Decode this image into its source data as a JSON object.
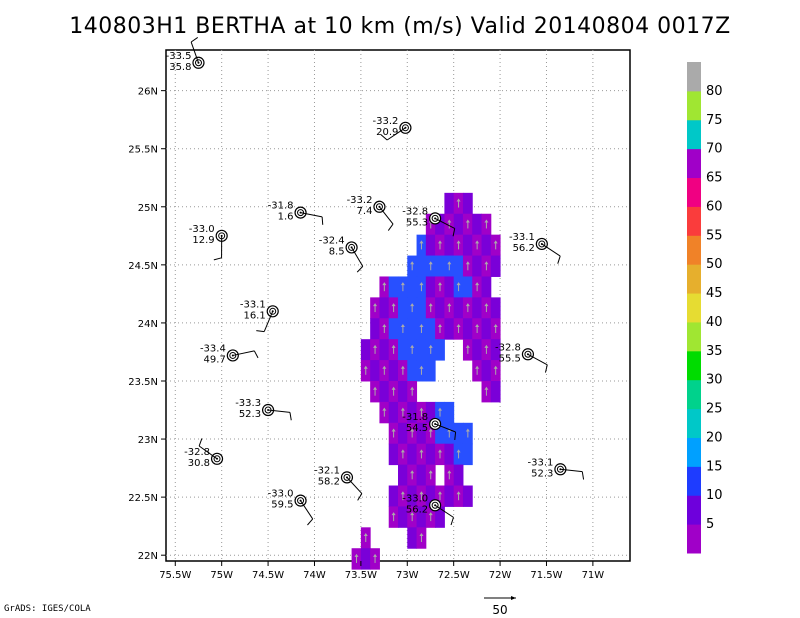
{
  "title": "140803H1 BERTHA at 10 km (m/s) Valid 20140804 0017Z",
  "footer": "GrADS: IGES/COLA",
  "vector_scale": {
    "label": "50"
  },
  "axes": {
    "x_ticks": [
      "75.5W",
      "75W",
      "74.5W",
      "74W",
      "73.5W",
      "73W",
      "72.5W",
      "72W",
      "71.5W",
      "71W"
    ],
    "x_values": [
      -75.5,
      -75,
      -74.5,
      -74,
      -73.5,
      -73,
      -72.5,
      -72,
      -71.5,
      -71
    ],
    "y_ticks": [
      "22N",
      "22.5N",
      "23N",
      "23.5N",
      "24N",
      "24.5N",
      "25N",
      "25.5N",
      "26N"
    ],
    "y_values": [
      22,
      22.5,
      23,
      23.5,
      24,
      24.5,
      25,
      25.5,
      26
    ],
    "xlim": [
      -75.6,
      -70.6
    ],
    "ylim": [
      21.95,
      26.35
    ]
  },
  "colorbar": {
    "labels": [
      "5",
      "10",
      "15",
      "20",
      "25",
      "30",
      "35",
      "40",
      "45",
      "50",
      "55",
      "60",
      "65",
      "70",
      "75",
      "80"
    ],
    "colors": [
      "#a000c8",
      "#6e00dc",
      "#1e3cff",
      "#00a0ff",
      "#00c8c8",
      "#00d28c",
      "#00dc00",
      "#a0e632",
      "#e6dc32",
      "#e6af2d",
      "#f08228",
      "#fa3c3c",
      "#f00082",
      "#a000c8",
      "#00c8c8",
      "#a0e632",
      "#aaaaaa"
    ]
  },
  "dropsondes": [
    {
      "lon": -75.25,
      "lat": 26.24,
      "temp": "-33.5",
      "wspd": "35.8"
    },
    {
      "lon": -73.02,
      "lat": 25.68,
      "temp": "-33.2",
      "wspd": "20.9"
    },
    {
      "lon": -74.15,
      "lat": 24.95,
      "temp": "-31.8",
      "wspd": "1.6"
    },
    {
      "lon": -73.3,
      "lat": 25.0,
      "temp": "-33.2",
      "wspd": "7.4"
    },
    {
      "lon": -72.7,
      "lat": 24.9,
      "temp": "-32.8",
      "wspd": "55.3"
    },
    {
      "lon": -75.0,
      "lat": 24.75,
      "temp": "-33.0",
      "wspd": "12.9"
    },
    {
      "lon": -73.6,
      "lat": 24.65,
      "temp": "-32.4",
      "wspd": "8.5"
    },
    {
      "lon": -71.55,
      "lat": 24.68,
      "temp": "-33.1",
      "wspd": "56.2"
    },
    {
      "lon": -74.45,
      "lat": 24.1,
      "temp": "-33.1",
      "wspd": "16.1"
    },
    {
      "lon": -74.88,
      "lat": 23.72,
      "temp": "-33.4",
      "wspd": "49.7"
    },
    {
      "lon": -71.7,
      "lat": 23.73,
      "temp": "-32.8",
      "wspd": "55.5"
    },
    {
      "lon": -74.5,
      "lat": 23.25,
      "temp": "-33.3",
      "wspd": "52.3"
    },
    {
      "lon": -72.7,
      "lat": 23.13,
      "temp": "-31.8",
      "wspd": "54.5"
    },
    {
      "lon": -75.05,
      "lat": 22.83,
      "temp": "-32.8",
      "wspd": "30.8"
    },
    {
      "lon": -73.65,
      "lat": 22.67,
      "temp": "-32.1",
      "wspd": "58.2"
    },
    {
      "lon": -71.35,
      "lat": 22.74,
      "temp": "-33.1",
      "wspd": "52.3"
    },
    {
      "lon": -74.15,
      "lat": 22.47,
      "temp": "-33.0",
      "wspd": "59.5"
    },
    {
      "lon": -72.7,
      "lat": 22.43,
      "temp": "-33.0",
      "wspd": "56.2"
    }
  ]
}
